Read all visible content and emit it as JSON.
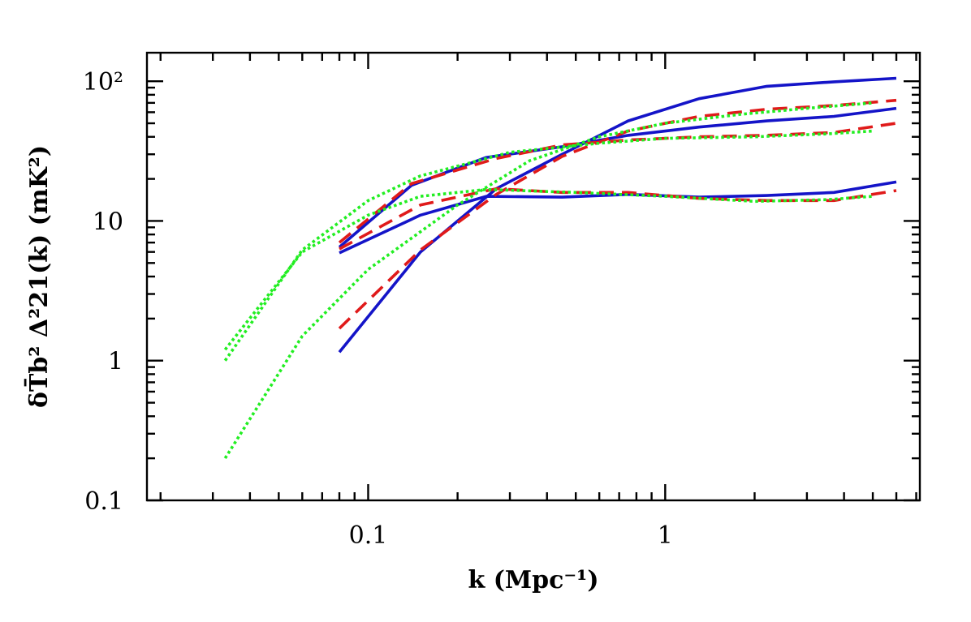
{
  "chart_data": {
    "type": "line",
    "x_scale": "log",
    "y_scale": "log",
    "xlim": [
      0.018,
      7.2
    ],
    "ylim": [
      0.1,
      160
    ],
    "xlabel": "k (Mpc⁻¹)",
    "ylabel": "δT̄b² Δ²21(k) (mK²)",
    "x_tick_labels": [
      {
        "value": 0.1,
        "label": "0.1"
      },
      {
        "value": 1,
        "label": "1"
      }
    ],
    "y_tick_labels": [
      {
        "value": 0.1,
        "label": "0.1"
      },
      {
        "value": 1,
        "label": "1"
      },
      {
        "value": 10,
        "label": "10"
      },
      {
        "value": 100,
        "label": "10²"
      }
    ],
    "grid": false,
    "colors": {
      "solid": "#1414c8",
      "dashed": "#e01a1a",
      "dotted": "#22ee22"
    },
    "series": [
      {
        "style": "solid",
        "x": [
          0.08,
          0.15,
          0.27,
          0.45,
          0.75,
          1.3,
          2.2,
          3.7,
          6.0
        ],
        "values": [
          1.15,
          6.0,
          17.0,
          30.0,
          52.0,
          75.0,
          92.0,
          99.0,
          105.0
        ]
      },
      {
        "style": "solid",
        "x": [
          0.08,
          0.14,
          0.25,
          0.45,
          0.75,
          1.3,
          2.2,
          3.7,
          6.0
        ],
        "values": [
          6.5,
          18.0,
          28.5,
          34.0,
          41.0,
          47.0,
          52.0,
          56.0,
          64.0
        ]
      },
      {
        "style": "solid",
        "x": [
          0.08,
          0.15,
          0.25,
          0.45,
          0.75,
          1.3,
          2.2,
          3.7,
          6.0
        ],
        "values": [
          5.9,
          11.0,
          15.0,
          14.8,
          15.5,
          14.8,
          15.2,
          16.0,
          19.0
        ]
      },
      {
        "style": "dashed",
        "x": [
          0.08,
          0.15,
          0.27,
          0.45,
          0.75,
          1.3,
          2.2,
          3.7,
          6.0
        ],
        "values": [
          1.7,
          6.2,
          15.5,
          29.0,
          44.0,
          56.0,
          63.0,
          67.0,
          73.0
        ]
      },
      {
        "style": "dashed",
        "x": [
          0.08,
          0.14,
          0.27,
          0.45,
          0.75,
          1.3,
          2.2,
          3.7,
          6.0
        ],
        "values": [
          7.0,
          18.5,
          28.0,
          35.0,
          38.0,
          40.0,
          41.0,
          43.0,
          50.0
        ]
      },
      {
        "style": "dashed",
        "x": [
          0.08,
          0.15,
          0.27,
          0.45,
          0.75,
          1.3,
          2.2,
          3.7,
          6.0
        ],
        "values": [
          6.3,
          13.0,
          17.0,
          16.0,
          16.0,
          14.5,
          14.0,
          14.0,
          16.5
        ]
      },
      {
        "style": "dotted",
        "x": [
          0.033,
          0.06,
          0.1,
          0.2,
          0.35,
          0.6,
          1.0,
          1.8,
          3.0,
          5.0
        ],
        "values": [
          0.2,
          1.5,
          4.5,
          13.0,
          27.0,
          40.0,
          50.0,
          58.0,
          64.0,
          70.0
        ]
      },
      {
        "style": "dotted",
        "x": [
          0.033,
          0.06,
          0.1,
          0.15,
          0.3,
          0.6,
          1.0,
          2.0,
          3.5,
          5.0
        ],
        "values": [
          1.0,
          6.2,
          14.0,
          21.0,
          31.0,
          36.0,
          39.0,
          40.0,
          42.0,
          44.0
        ]
      },
      {
        "style": "dotted",
        "x": [
          0.033,
          0.06,
          0.1,
          0.15,
          0.25,
          0.5,
          1.0,
          2.0,
          3.5,
          5.0
        ],
        "values": [
          1.2,
          6.0,
          11.0,
          15.0,
          16.8,
          16.0,
          15.0,
          13.8,
          14.2,
          15.0
        ]
      }
    ]
  }
}
